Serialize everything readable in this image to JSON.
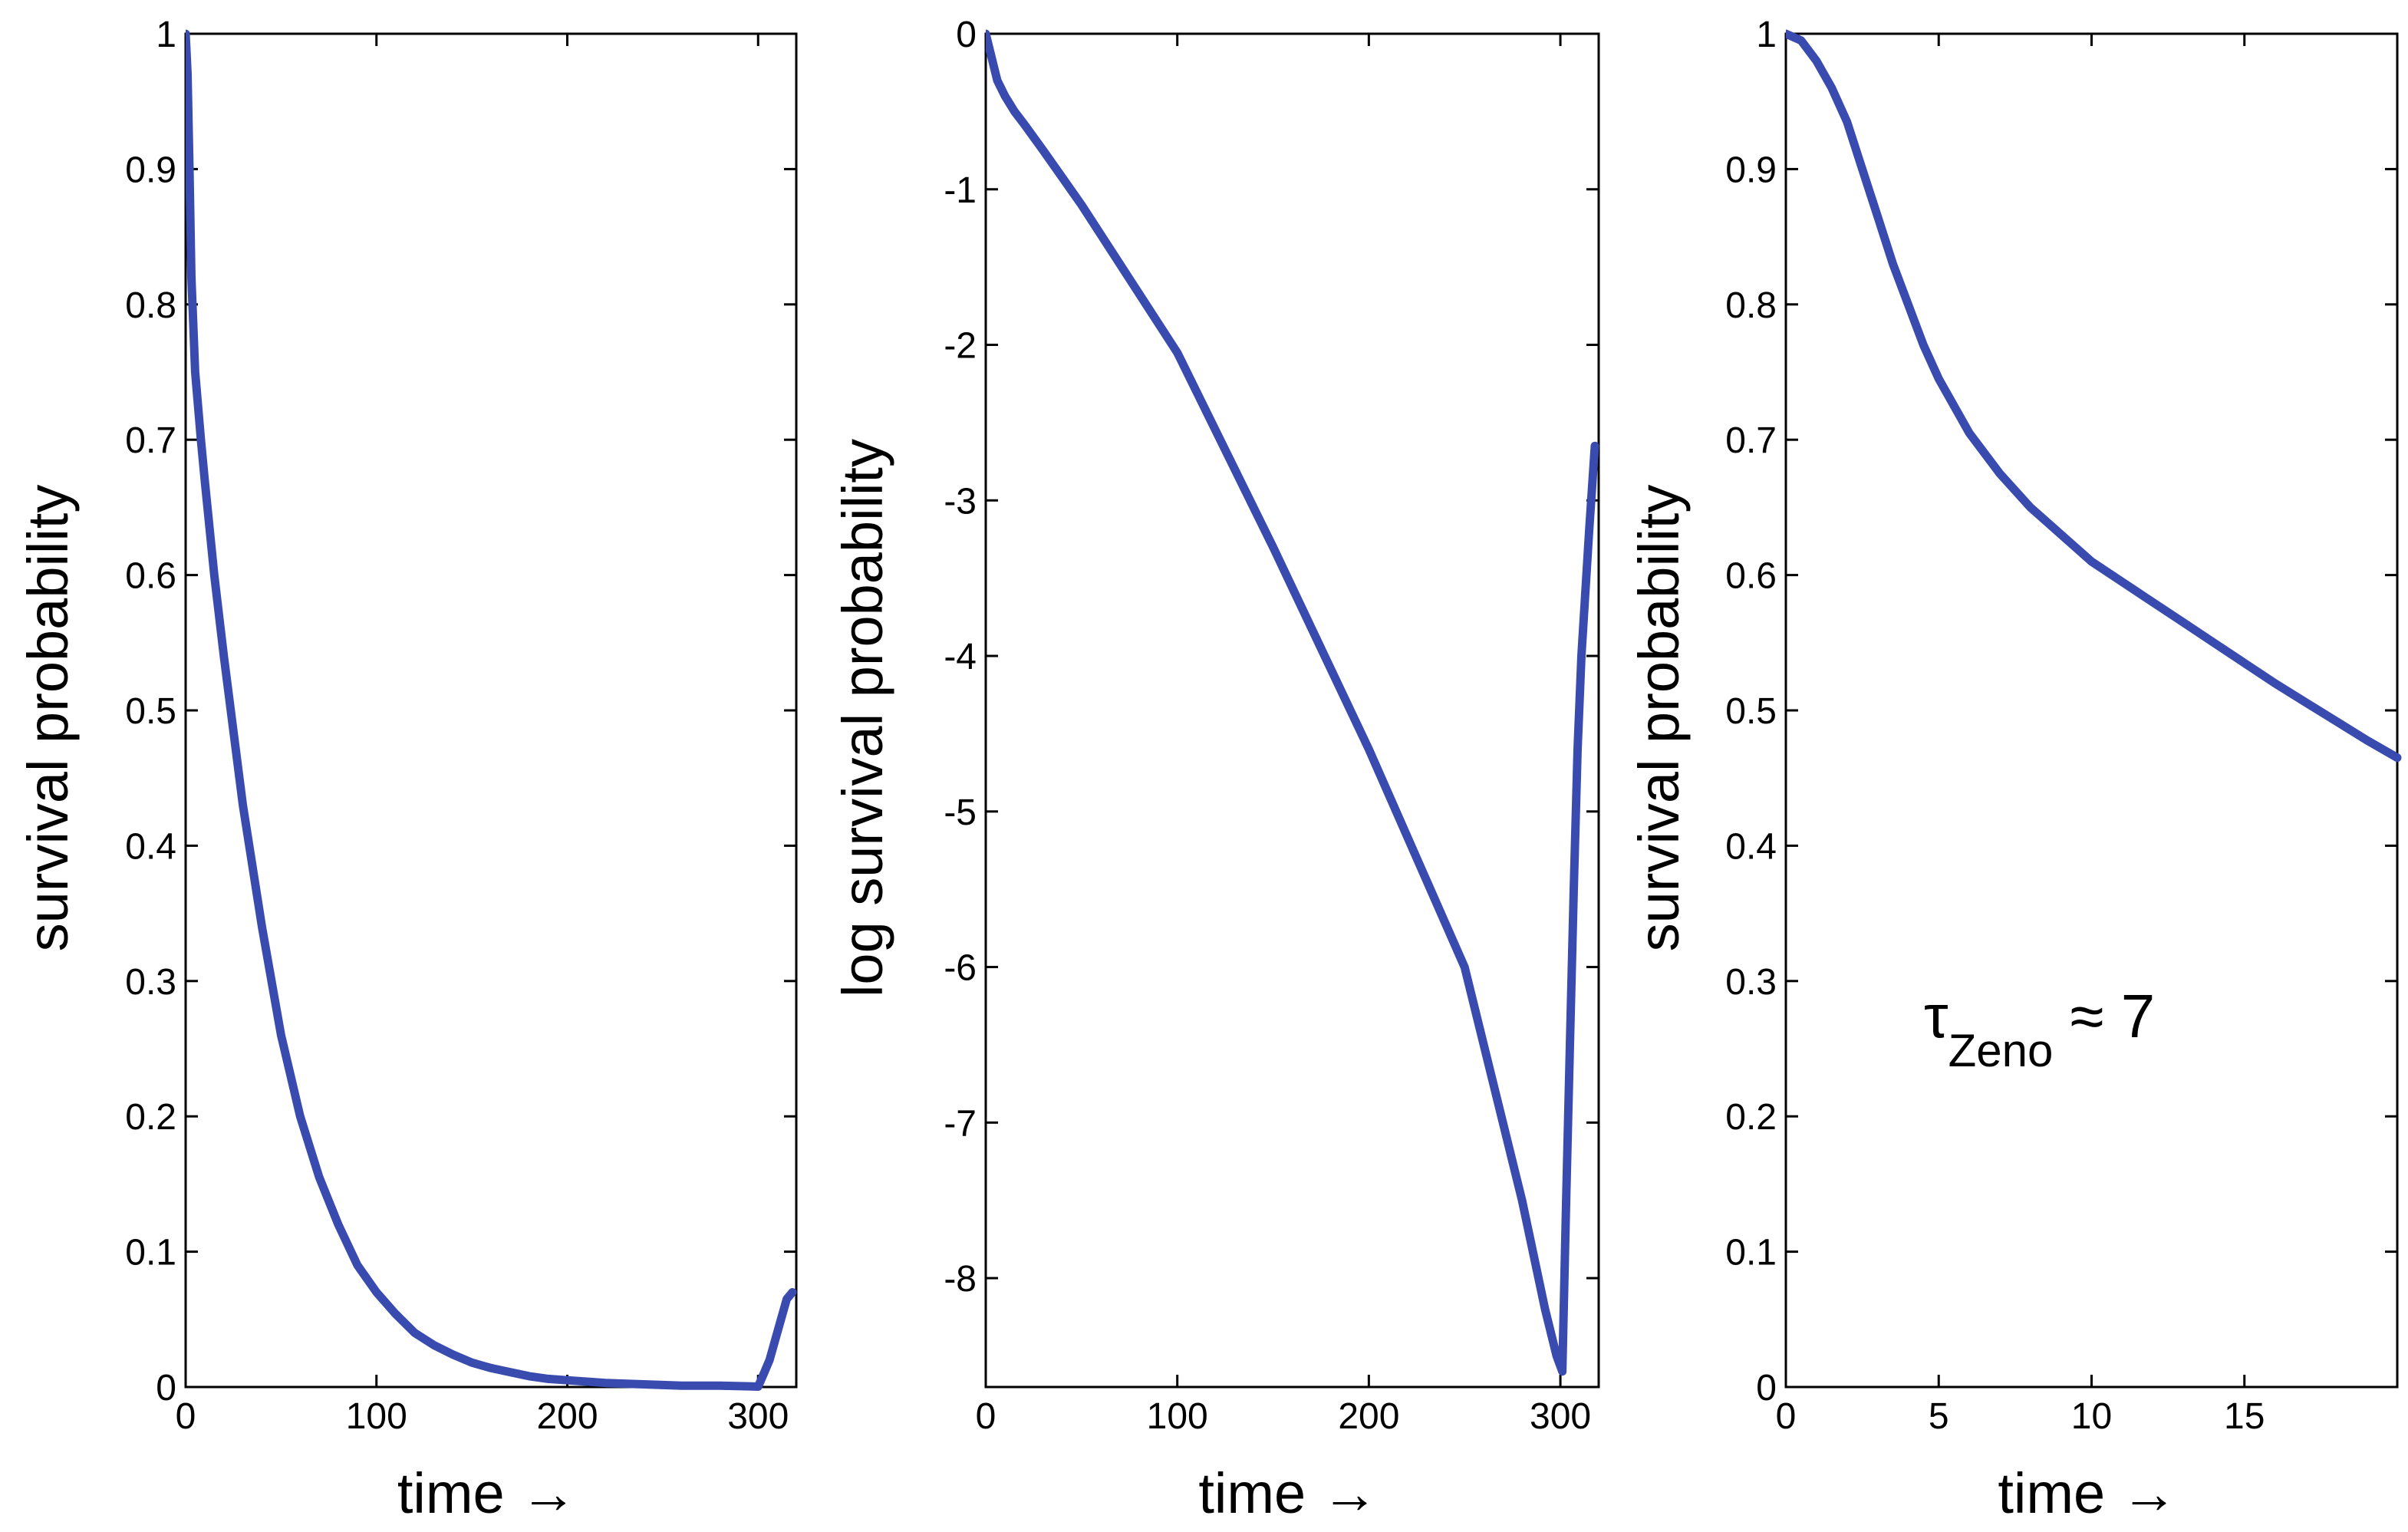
{
  "chart_data": [
    {
      "type": "line",
      "xlabel": "time →",
      "ylabel": "survival probability",
      "xlim": [
        0,
        320
      ],
      "ylim": [
        0,
        1
      ],
      "xticks": [
        0,
        100,
        200,
        300
      ],
      "xtick_labels": [
        "0",
        "100",
        "200",
        "300"
      ],
      "yticks": [
        0,
        0.1,
        0.2,
        0.3,
        0.4,
        0.5,
        0.6,
        0.7,
        0.8,
        0.9,
        1
      ],
      "ytick_labels": [
        "0",
        "0.1",
        "0.2",
        "0.3",
        "0.4",
        "0.5",
        "0.6",
        "0.7",
        "0.8",
        "0.9",
        "1"
      ],
      "series": [
        {
          "color": "#3a4bb0",
          "x": [
            0,
            1,
            2,
            3,
            5,
            8,
            10,
            15,
            20,
            30,
            40,
            50,
            60,
            70,
            80,
            90,
            100,
            110,
            120,
            130,
            140,
            150,
            160,
            170,
            180,
            190,
            200,
            220,
            240,
            260,
            280,
            295,
            300,
            303,
            306,
            309,
            312,
            315,
            318
          ],
          "y": [
            1.0,
            0.97,
            0.9,
            0.82,
            0.75,
            0.7,
            0.67,
            0.6,
            0.54,
            0.43,
            0.34,
            0.26,
            0.2,
            0.155,
            0.12,
            0.09,
            0.07,
            0.054,
            0.04,
            0.031,
            0.024,
            0.018,
            0.014,
            0.011,
            0.008,
            0.006,
            0.005,
            0.003,
            0.002,
            0.001,
            0.001,
            0.0005,
            0.0003,
            0.01,
            0.02,
            0.035,
            0.05,
            0.065,
            0.07
          ]
        }
      ]
    },
    {
      "type": "line",
      "xlabel": "time →",
      "ylabel": "log survival probability",
      "xlim": [
        0,
        320
      ],
      "ylim": [
        -8.7,
        0
      ],
      "xticks": [
        0,
        100,
        200,
        300
      ],
      "xtick_labels": [
        "0",
        "100",
        "200",
        "300"
      ],
      "yticks": [
        0,
        -1,
        -2,
        -3,
        -4,
        -5,
        -6,
        -7,
        -8
      ],
      "ytick_labels": [
        "0",
        "-1",
        "-2",
        "-3",
        "-4",
        "-5",
        "-6",
        "-7",
        "-8"
      ],
      "series": [
        {
          "color": "#3a4bb0",
          "x": [
            0,
            3,
            6,
            10,
            15,
            20,
            30,
            50,
            100,
            150,
            200,
            250,
            280,
            292,
            298,
            301,
            303,
            305,
            307,
            309,
            311,
            313,
            315,
            318
          ],
          "y": [
            0,
            -0.15,
            -0.3,
            -0.4,
            -0.5,
            -0.58,
            -0.75,
            -1.1,
            -2.05,
            -3.3,
            -4.6,
            -6.0,
            -7.5,
            -8.2,
            -8.5,
            -8.6,
            -7.5,
            -6.5,
            -5.5,
            -4.6,
            -4.0,
            -3.6,
            -3.2,
            -2.65
          ]
        }
      ]
    },
    {
      "type": "line",
      "xlabel": "time →",
      "ylabel": "survival probability",
      "xlim": [
        0,
        20
      ],
      "ylim": [
        0,
        1
      ],
      "xticks": [
        0,
        5,
        10,
        15
      ],
      "xtick_labels": [
        "0",
        "5",
        "10",
        "15"
      ],
      "yticks": [
        0,
        0.1,
        0.2,
        0.3,
        0.4,
        0.5,
        0.6,
        0.7,
        0.8,
        0.9,
        1
      ],
      "ytick_labels": [
        "0",
        "0.1",
        "0.2",
        "0.3",
        "0.4",
        "0.5",
        "0.6",
        "0.7",
        "0.8",
        "0.9",
        "1"
      ],
      "annotation": {
        "text_main": "τ",
        "text_sub": "Zeno",
        "text_rest": " ≈ 7"
      },
      "series": [
        {
          "color": "#3a4bb0",
          "x": [
            0,
            0.5,
            1,
            1.5,
            2,
            2.5,
            3,
            3.5,
            4,
            4.5,
            5,
            6,
            7,
            8,
            9,
            10,
            11,
            12,
            13,
            14,
            15,
            16,
            17,
            18,
            19,
            20
          ],
          "y": [
            1.0,
            0.995,
            0.98,
            0.96,
            0.935,
            0.9,
            0.865,
            0.83,
            0.8,
            0.77,
            0.745,
            0.705,
            0.675,
            0.65,
            0.63,
            0.61,
            0.595,
            0.58,
            0.565,
            0.55,
            0.535,
            0.52,
            0.506,
            0.492,
            0.478,
            0.465
          ]
        }
      ]
    }
  ]
}
